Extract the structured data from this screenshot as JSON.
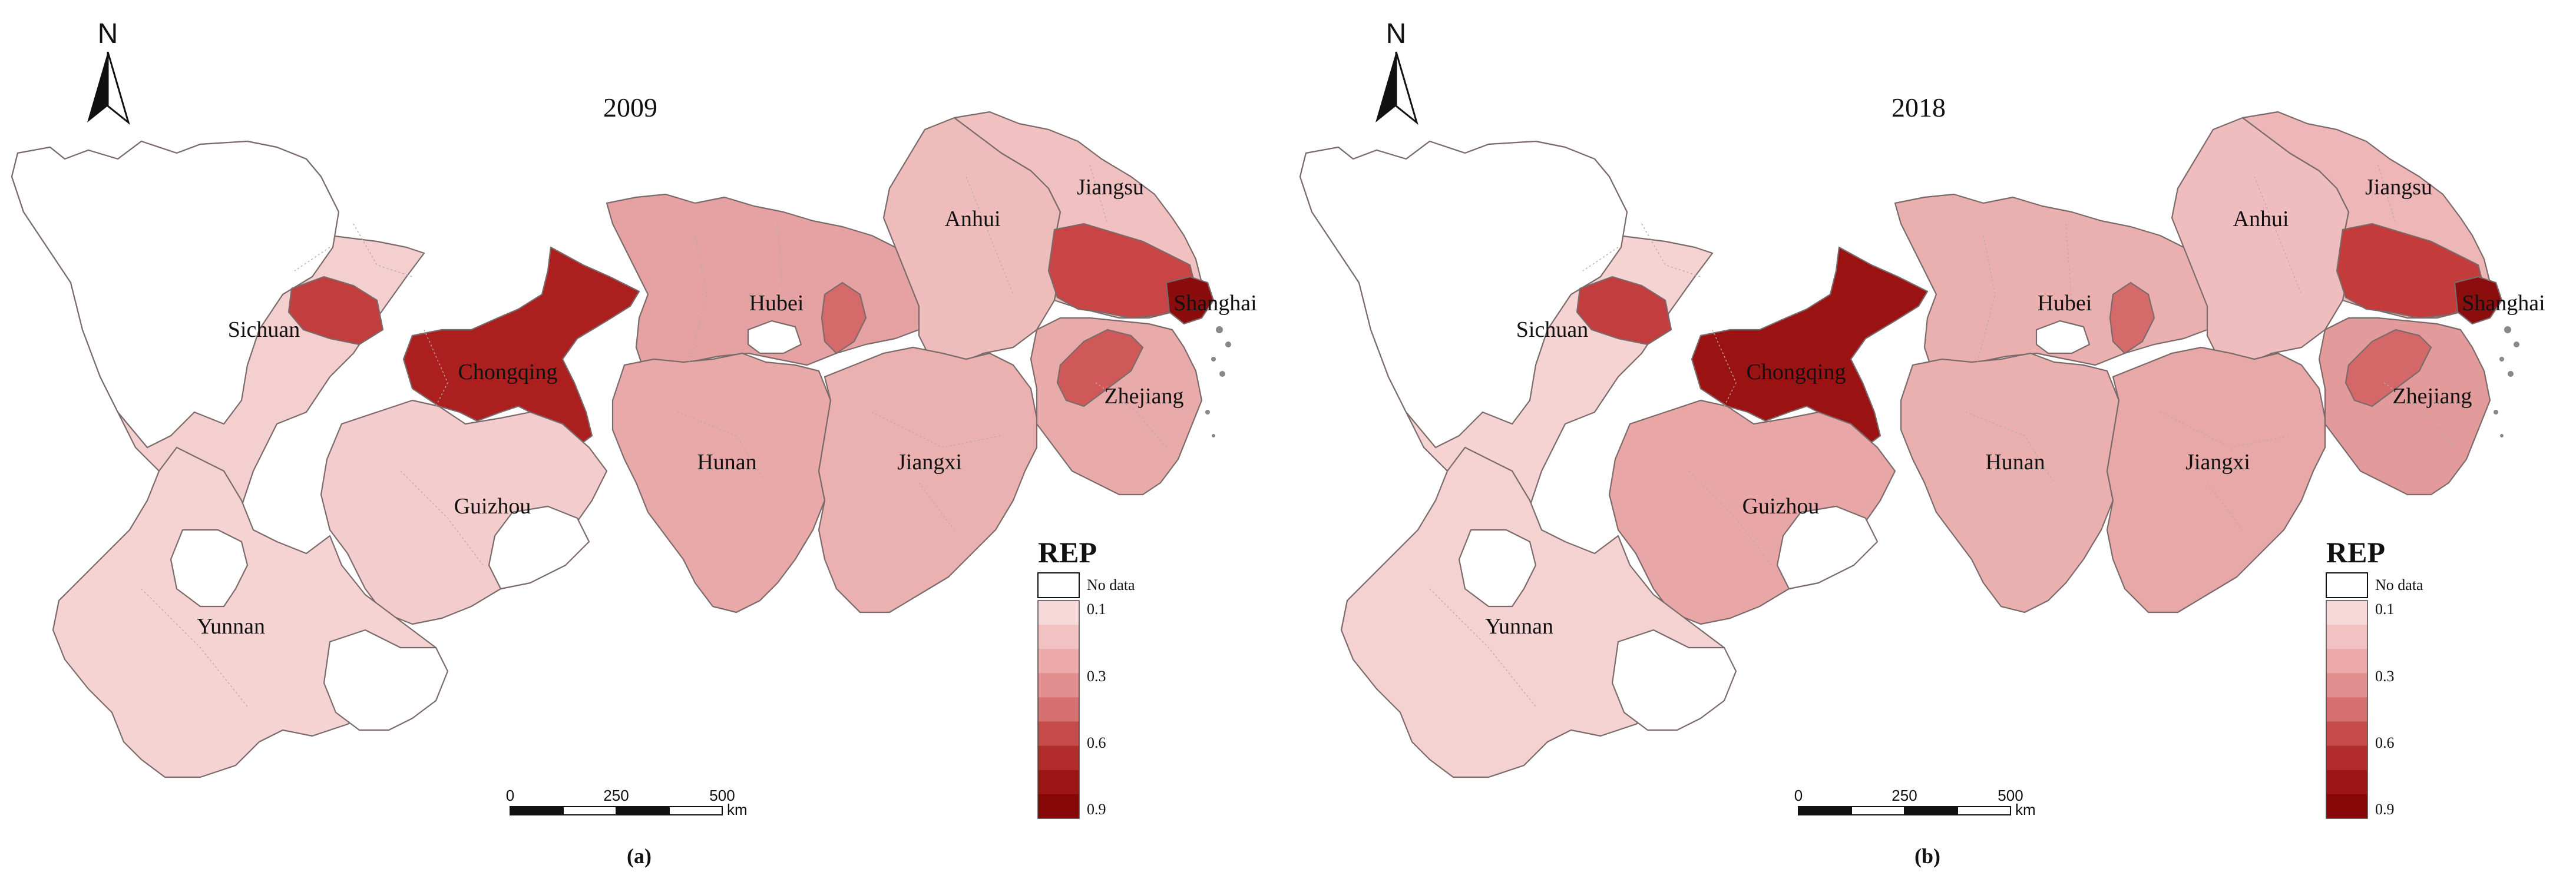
{
  "maps": [
    {
      "year": "2009",
      "caption": "(a)",
      "labels": [
        "Sichuan",
        "Chongqing",
        "Guizhou",
        "Yunnan",
        "Hubei",
        "Hunan",
        "Anhui",
        "Jiangxi",
        "Jiangsu",
        "Shanghai",
        "Zhejiang"
      ],
      "shading": {
        "Sichuan": "#f4cfcf",
        "Chongqing": "#ac1f1f",
        "Guizhou": "#f3cdcd",
        "Yunnan": "#f5d3d3",
        "Hubei": "#e6a2a2",
        "Hunan": "#e9a9a9",
        "Anhui": "#efbcbc",
        "Jiangxi": "#ebb1b1",
        "Jiangsu": "#f1c1c1",
        "Shanghai": "#8a0c0c",
        "Zhejiang": "#e9aaaa",
        "Chengdu": "#c23d3d",
        "Wuhan": "#d46a6a",
        "Southern Jiangsu": "#c94444",
        "Hangzhou": "#cf5959"
      }
    },
    {
      "year": "2018",
      "caption": "(b)",
      "labels": [
        "Sichuan",
        "Chongqing",
        "Guizhou",
        "Yunnan",
        "Hubei",
        "Hunan",
        "Anhui",
        "Jiangxi",
        "Jiangsu",
        "Shanghai",
        "Zhejiang"
      ],
      "shading": {
        "Sichuan": "#f5d3d3",
        "Chongqing": "#9a1212",
        "Guizhou": "#e8a6a6",
        "Yunnan": "#f5d2d2",
        "Hubei": "#eab0b0",
        "Hunan": "#eab0b0",
        "Anhui": "#efbdbd",
        "Jiangxi": "#e8a8a8",
        "Jiangsu": "#eeb6b6",
        "Shanghai": "#8c0d0d",
        "Zhejiang": "#e29a9a",
        "Chengdu": "#c23d3d",
        "Wuhan": "#d46a6a",
        "Southern Jiangsu": "#c43b3b",
        "Hangzhou": "#d46767"
      }
    }
  ],
  "legend": {
    "title": "REP",
    "no_data_label": "No data",
    "tick_labels": [
      "0.1",
      "0.3",
      "0.6",
      "0.9"
    ],
    "colors": [
      "#f7d9d9",
      "#f2c2c2",
      "#eba9a9",
      "#e28e8e",
      "#d66f6f",
      "#c64b4b",
      "#b32c2c",
      "#9d1414",
      "#870606"
    ]
  },
  "scale_bar": {
    "ticks": [
      "0",
      "250",
      "500"
    ],
    "unit": "km"
  },
  "north_arrow": {
    "label": "N"
  }
}
